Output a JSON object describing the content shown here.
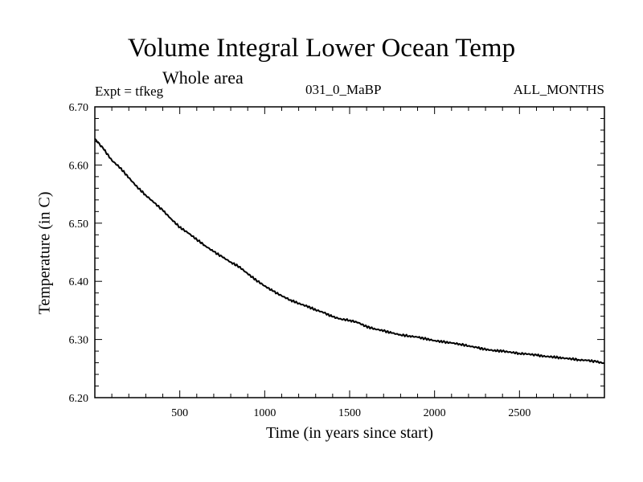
{
  "chart_data": {
    "type": "line",
    "title": "Volume Integral Lower Ocean Temp",
    "subtitle": "Whole area",
    "info_left": "Expt = tfkeg",
    "info_center": "031_0_MaBP",
    "info_right": "ALL_MONTHS",
    "xlabel": "Time (in years since start)",
    "ylabel": "Temperature (in C)",
    "xlim": [
      0,
      3000
    ],
    "ylim": [
      6.2,
      6.7
    ],
    "x_ticks": [
      500,
      1000,
      1500,
      2000,
      2500
    ],
    "y_ticks": [
      6.2,
      6.3,
      6.4,
      6.5,
      6.6,
      6.7
    ],
    "x_tick_labels": [
      "500",
      "1000",
      "1500",
      "2000",
      "2500"
    ],
    "y_tick_labels": [
      "6.20",
      "6.30",
      "6.40",
      "6.50",
      "6.60",
      "6.70"
    ],
    "grid": false,
    "series": [
      {
        "color": "#000000",
        "x": [
          0,
          50,
          100,
          150,
          200,
          250,
          300,
          350,
          400,
          450,
          500,
          550,
          600,
          650,
          700,
          750,
          800,
          850,
          900,
          950,
          1000,
          1050,
          1100,
          1150,
          1200,
          1250,
          1300,
          1350,
          1400,
          1450,
          1500,
          1550,
          1600,
          1650,
          1700,
          1750,
          1800,
          1850,
          1900,
          1950,
          2000,
          2050,
          2100,
          2150,
          2200,
          2250,
          2300,
          2350,
          2400,
          2450,
          2500,
          2550,
          2600,
          2650,
          2700,
          2750,
          2800,
          2850,
          2900,
          2950,
          3000
        ],
        "values": [
          6.645,
          6.628,
          6.608,
          6.595,
          6.578,
          6.562,
          6.548,
          6.535,
          6.522,
          6.507,
          6.493,
          6.483,
          6.472,
          6.461,
          6.451,
          6.442,
          6.433,
          6.425,
          6.413,
          6.402,
          6.392,
          6.383,
          6.375,
          6.368,
          6.362,
          6.357,
          6.351,
          6.346,
          6.339,
          6.335,
          6.333,
          6.329,
          6.322,
          6.318,
          6.315,
          6.311,
          6.308,
          6.306,
          6.304,
          6.301,
          6.298,
          6.296,
          6.294,
          6.292,
          6.289,
          6.286,
          6.283,
          6.281,
          6.28,
          6.278,
          6.276,
          6.275,
          6.273,
          6.271,
          6.27,
          6.268,
          6.267,
          6.265,
          6.264,
          6.262,
          6.259
        ]
      }
    ]
  }
}
